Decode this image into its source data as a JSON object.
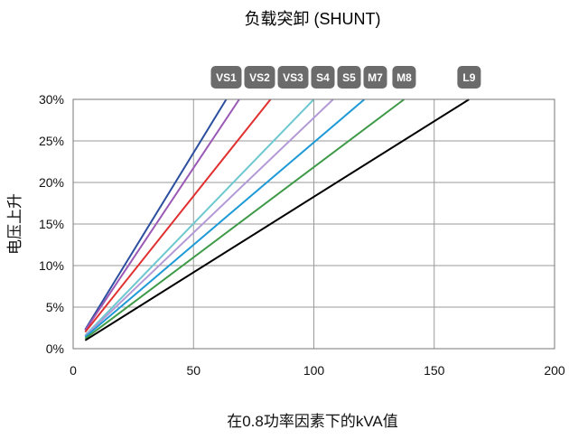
{
  "chart_data": {
    "type": "line",
    "title": "负载突卸 (SHUNT)",
    "xlabel": "在0.8功率因素下的kVA值",
    "ylabel": "电压上升",
    "xlim": [
      0,
      200
    ],
    "ylim": [
      0,
      30
    ],
    "x_ticks": [
      "0",
      "50",
      "100",
      "150",
      "200"
    ],
    "y_ticks": [
      "0%",
      "5%",
      "10%",
      "15%",
      "20%",
      "25%",
      "30%"
    ],
    "grid": true,
    "series": [
      {
        "name": "VS1",
        "color": "#2b4f9e",
        "x": [
          5,
          63.6
        ],
        "y": [
          2.3,
          30
        ]
      },
      {
        "name": "VS2",
        "color": "#9b59b6",
        "x": [
          5,
          69
        ],
        "y": [
          2.2,
          30
        ]
      },
      {
        "name": "VS3",
        "color": "#e03030",
        "x": [
          5,
          82
        ],
        "y": [
          2.0,
          30
        ]
      },
      {
        "name": "S4",
        "color": "#6dc8d0",
        "x": [
          5,
          100
        ],
        "y": [
          1.6,
          30
        ]
      },
      {
        "name": "S5",
        "color": "#b39ad6",
        "x": [
          5,
          108
        ],
        "y": [
          1.5,
          30
        ]
      },
      {
        "name": "M7",
        "color": "#1e9ad6",
        "x": [
          5,
          121
        ],
        "y": [
          1.4,
          30
        ]
      },
      {
        "name": "M8",
        "color": "#3f9a48",
        "x": [
          5,
          137.5
        ],
        "y": [
          1.2,
          30
        ]
      },
      {
        "name": "L9",
        "color": "#000000",
        "x": [
          5,
          164.5
        ],
        "y": [
          1.0,
          30
        ]
      }
    ]
  }
}
